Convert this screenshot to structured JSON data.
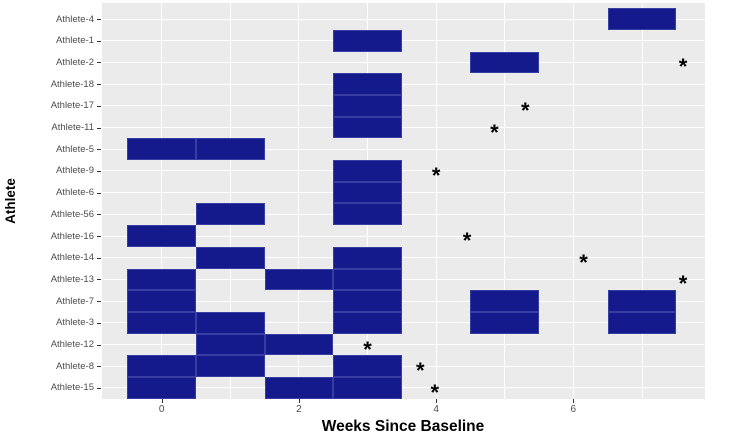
{
  "chart_data": {
    "type": "heatmap",
    "title": "",
    "xlabel": "Weeks Since Baseline",
    "ylabel": "Athlete",
    "x_ticks": [
      0,
      2,
      4,
      6
    ],
    "x_gridlines": [
      0,
      1,
      2,
      3,
      4,
      5,
      6,
      7
    ],
    "x_range_weeks": [
      -0.87,
      7.92
    ],
    "tile_width_weeks": 1,
    "legend": "none",
    "grid": "on",
    "rows": [
      {
        "name": "Athlete-4",
        "tiles": [
          7
        ],
        "star": null
      },
      {
        "name": "Athlete-1",
        "tiles": [
          3
        ],
        "star": null
      },
      {
        "name": "Athlete-2",
        "tiles": [
          5
        ],
        "star": 7.6
      },
      {
        "name": "Athlete-18",
        "tiles": [
          3
        ],
        "star": null
      },
      {
        "name": "Athlete-17",
        "tiles": [
          3
        ],
        "star": 5.3
      },
      {
        "name": "Athlete-11",
        "tiles": [
          3
        ],
        "star": 4.85
      },
      {
        "name": "Athlete-5",
        "tiles": [
          0,
          1
        ],
        "star": null
      },
      {
        "name": "Athlete-9",
        "tiles": [
          3
        ],
        "star": 4.0
      },
      {
        "name": "Athlete-6",
        "tiles": [
          3
        ],
        "star": null
      },
      {
        "name": "Athlete-56",
        "tiles": [
          1,
          3
        ],
        "star": null
      },
      {
        "name": "Athlete-16",
        "tiles": [
          0
        ],
        "star": 4.45
      },
      {
        "name": "Athlete-14",
        "tiles": [
          1,
          3
        ],
        "star": 6.15
      },
      {
        "name": "Athlete-13",
        "tiles": [
          0,
          2,
          3
        ],
        "star": 7.6
      },
      {
        "name": "Athlete-7",
        "tiles": [
          0,
          3,
          5,
          7
        ],
        "star": null
      },
      {
        "name": "Athlete-3",
        "tiles": [
          0,
          1,
          3,
          5,
          7
        ],
        "star": null
      },
      {
        "name": "Athlete-12",
        "tiles": [
          1,
          2
        ],
        "star": 3.0
      },
      {
        "name": "Athlete-8",
        "tiles": [
          0,
          1,
          3
        ],
        "star": 3.77
      },
      {
        "name": "Athlete-15",
        "tiles": [
          0,
          2,
          3
        ],
        "star": 3.98
      }
    ]
  },
  "colors": {
    "tile_fill": "#141A8C",
    "panel_background": "#EBEBEB",
    "gridline": "#FFFFFF",
    "tick_label": "#4D4D4D",
    "tick_mark": "#333333",
    "axis_title": "#000000",
    "marker": "#000000"
  },
  "marker_glyph": "*"
}
